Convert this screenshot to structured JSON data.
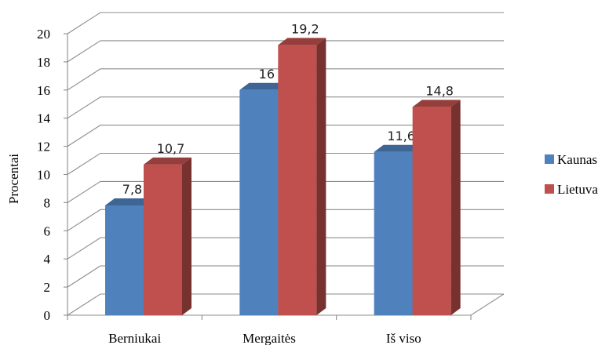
{
  "chart_data": {
    "type": "bar",
    "categories": [
      "Berniukai",
      "Mergaitės",
      "Iš viso"
    ],
    "series": [
      {
        "name": "Kaunas",
        "values": [
          7.8,
          16,
          11.6
        ],
        "labels": [
          "7,8",
          "16",
          "11,6"
        ],
        "color": "#4f81bd"
      },
      {
        "name": "Lietuva",
        "values": [
          10.7,
          19.2,
          14.8
        ],
        "labels": [
          "10,7",
          "19,2",
          "14,8"
        ],
        "color": "#c0504d"
      }
    ],
    "ylabel": "Procentai",
    "ylim": [
      0,
      20
    ],
    "yticks": [
      "0",
      "2",
      "4",
      "6",
      "8",
      "10",
      "12",
      "14",
      "16",
      "18",
      "20"
    ],
    "grid": true,
    "legend_position": "right",
    "style": "3d-clustered-column"
  }
}
